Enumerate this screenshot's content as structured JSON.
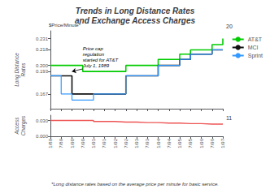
{
  "chart_data": [
    {
      "type": "step",
      "title": "Trends in Long Distance Rates\nand Exchange Access Charges",
      "ylabel": "Long Distance\nRates",
      "unit_label": "$Price/Minute*",
      "side_label": "20",
      "categories": [
        "1/89",
        "7/89",
        "1/90",
        "7/90",
        "1/91",
        "7/91",
        "1/92",
        "7/92",
        "1/93",
        "7/93",
        "1/94",
        "7/94",
        "1/95",
        "7/95",
        "1/96",
        "7/96",
        "1/97"
      ],
      "series": [
        {
          "name": "AT&T",
          "color": "#00cc00",
          "values": [
            0.2,
            0.2,
            0.2,
            0.193,
            0.193,
            0.193,
            0.193,
            0.2,
            0.2,
            0.2,
            0.207,
            0.207,
            0.213,
            0.218,
            0.218,
            0.224,
            0.231
          ]
        },
        {
          "name": "MCI",
          "color": "#111111",
          "values": [
            0.188,
            0.188,
            0.167,
            0.167,
            0.167,
            0.167,
            0.167,
            0.188,
            0.188,
            0.188,
            0.2,
            0.2,
            0.207,
            0.213,
            0.213,
            0.218,
            0.218
          ]
        },
        {
          "name": "Sprint",
          "color": "#3399ff",
          "values": [
            0.188,
            0.167,
            0.16,
            0.16,
            0.167,
            0.167,
            0.167,
            0.188,
            0.188,
            0.188,
            0.2,
            0.2,
            0.207,
            0.213,
            0.213,
            0.218,
            0.218
          ]
        }
      ],
      "ylim": [
        0.15,
        0.24
      ],
      "yticks": [
        0.167,
        0.193,
        {
          "value": 0.2,
          "label": "0.200"
        },
        0.218,
        0.231
      ],
      "annotations": [
        {
          "text": "Price cap\nregulation\nstarted for AT&T\nJuly 1, 1989",
          "x": 3,
          "y": 0.196,
          "arrow_x": 2,
          "arrow_y": 0.193
        }
      ],
      "legend": "right",
      "grid": false,
      "tick_labels": "y"
    },
    {
      "type": "step",
      "ylabel": "Access\nCharges",
      "side_label": "11",
      "footnote": "*Long distance rates based on the average price per minute for basic service.",
      "categories": [
        "1/89",
        "7/89",
        "1/90",
        "7/90",
        "1/91",
        "7/91",
        "1/92",
        "7/92",
        "1/93",
        "7/93",
        "1/94",
        "7/94",
        "1/95",
        "7/95",
        "1/96",
        "7/96",
        "1/97"
      ],
      "values": [
        0.03,
        0.03,
        0.03,
        0.03,
        0.028,
        0.028,
        0.027,
        0.027,
        0.026,
        0.026,
        0.025,
        0.025,
        0.024,
        0.024,
        0.023,
        0.023,
        0.022
      ],
      "color": "#ee5555",
      "ylim": [
        0.0,
        0.04
      ],
      "yticks": [
        {
          "value": 0.0,
          "label": "0.000"
        },
        {
          "value": 0.03,
          "label": "0.030"
        }
      ],
      "grid": false
    }
  ]
}
